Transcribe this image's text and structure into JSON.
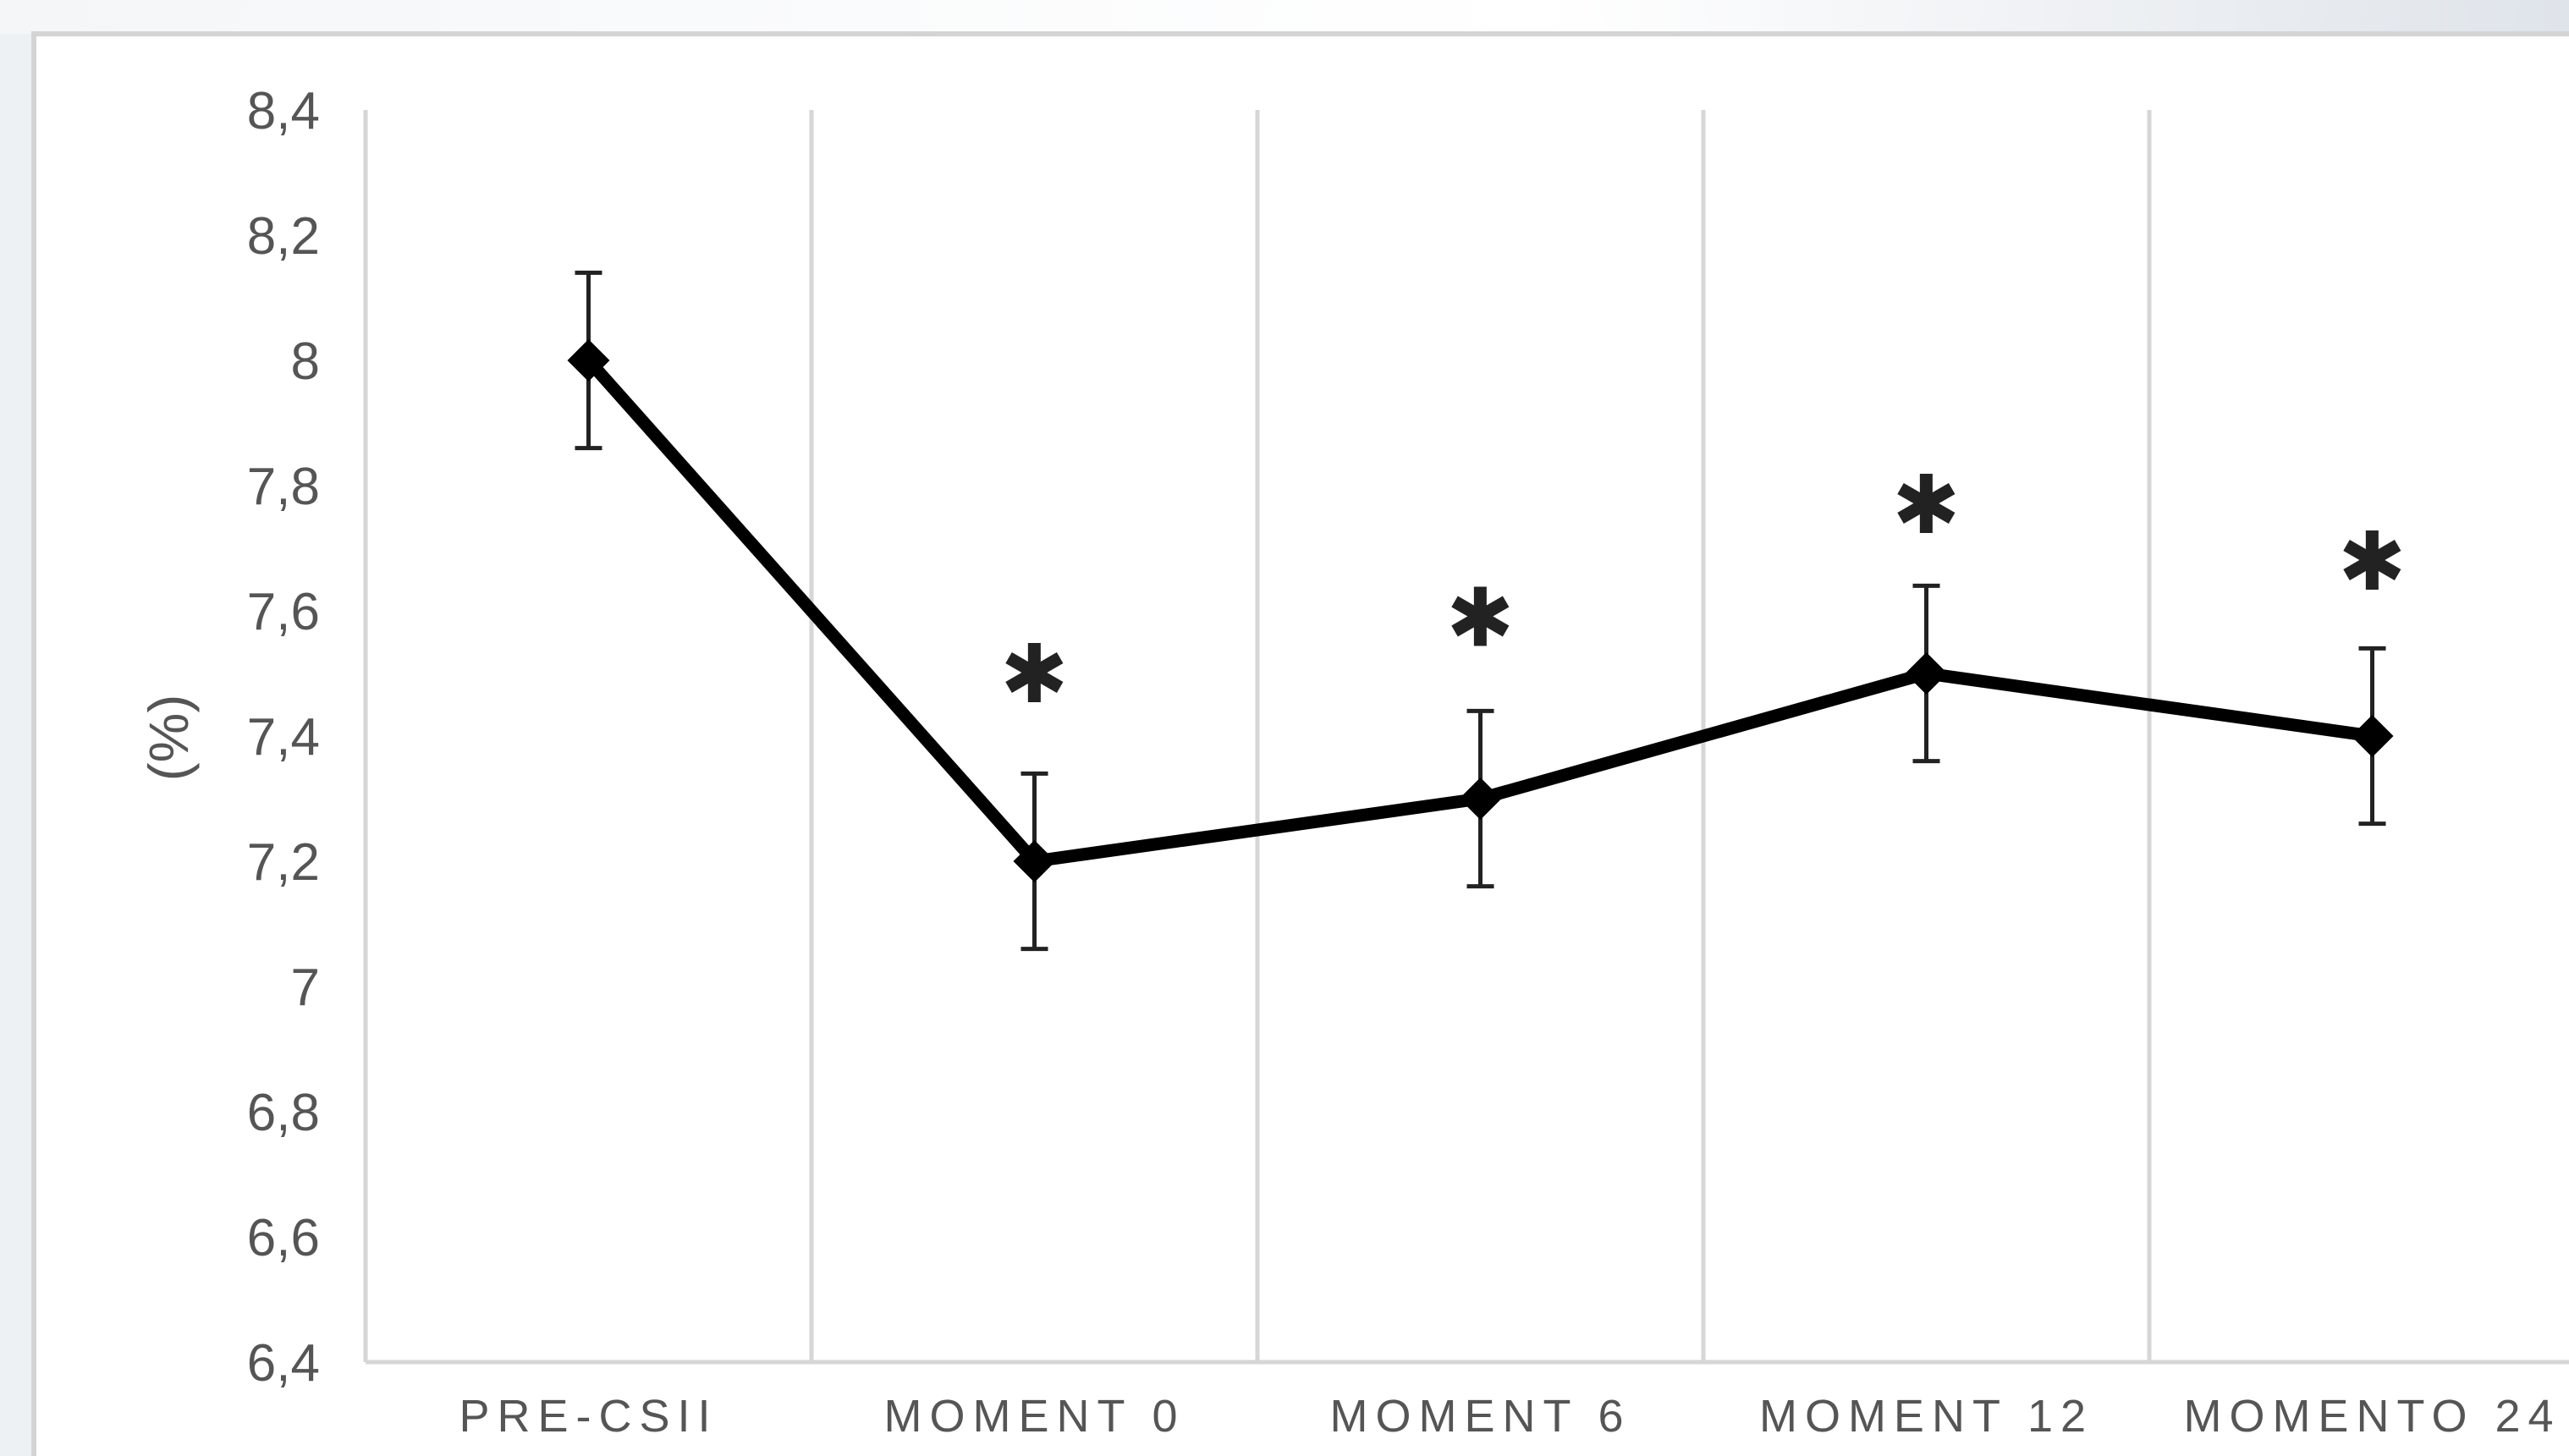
{
  "chart_data": {
    "type": "line",
    "title": "",
    "xlabel": "",
    "ylabel": "(%)",
    "categories": [
      "PRE-CSII",
      "MOMENT 0",
      "MOMENT 6",
      "MOMENT 12",
      "MOMENTO 24"
    ],
    "series": [
      {
        "values": [
          8.0,
          7.2,
          7.3,
          7.5,
          7.4
        ],
        "error_low": [
          7.86,
          7.06,
          7.16,
          7.36,
          7.26
        ],
        "error_high": [
          8.14,
          7.34,
          7.44,
          7.64,
          7.54
        ],
        "color": "#000000",
        "marker": "diamond"
      }
    ],
    "annotations": [
      {
        "category": "MOMENT 0",
        "text": "✱",
        "y": 7.5
      },
      {
        "category": "MOMENT 6",
        "text": "✱",
        "y": 7.59
      },
      {
        "category": "MOMENT 12",
        "text": "✱",
        "y": 7.77
      },
      {
        "category": "MOMENTO 24",
        "text": "✱",
        "y": 7.68
      }
    ],
    "yticks": [
      "6,4",
      "6,6",
      "6,8",
      "7",
      "7,2",
      "7,4",
      "7,6",
      "7,8",
      "8",
      "8,2",
      "8,4"
    ],
    "ylim": [
      6.4,
      8.4
    ],
    "grid": "vertical",
    "legend": "none"
  }
}
